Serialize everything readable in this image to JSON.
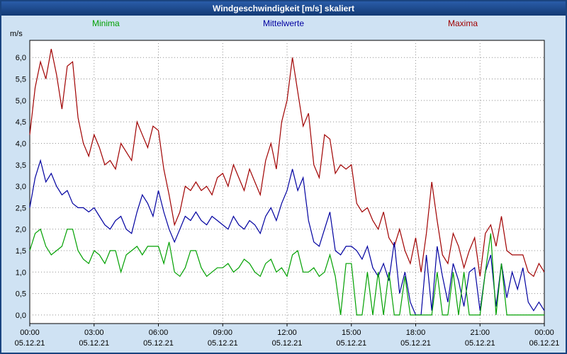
{
  "title": "Windgeschwindigkeit [m/s] skaliert",
  "legend": [
    {
      "label": "Minima",
      "color": "#00a000"
    },
    {
      "label": "Mittelwerte",
      "color": "#0000a0"
    },
    {
      "label": "Maxima",
      "color": "#a00000"
    }
  ],
  "chart_data": {
    "type": "line",
    "title": "Windgeschwindigkeit [m/s] skaliert",
    "xlabel": "",
    "ylabel": "m/s",
    "xlim": [
      0,
      24
    ],
    "ylim": [
      -0.2,
      6.4
    ],
    "y_tick_step": 0.5,
    "y_tick_max": 6.0,
    "x_tick_step_hours": 3,
    "x_step_hours": 0.25,
    "grid": "dotted",
    "legend_position": "top",
    "x_ticks": [
      {
        "time": "00:00",
        "date": "05.12.21"
      },
      {
        "time": "03:00",
        "date": "05.12.21"
      },
      {
        "time": "06:00",
        "date": "05.12.21"
      },
      {
        "time": "09:00",
        "date": "05.12.21"
      },
      {
        "time": "12:00",
        "date": "05.12.21"
      },
      {
        "time": "15:00",
        "date": "05.12.21"
      },
      {
        "time": "18:00",
        "date": "05.12.21"
      },
      {
        "time": "21:00",
        "date": "05.12.21"
      },
      {
        "time": "00:00",
        "date": "06.12.21"
      }
    ],
    "series": [
      {
        "name": "Maxima",
        "color": "#a00000",
        "values": [
          4.2,
          5.3,
          5.9,
          5.5,
          6.2,
          5.6,
          4.8,
          5.8,
          5.9,
          4.6,
          4.0,
          3.7,
          4.2,
          3.9,
          3.5,
          3.6,
          3.4,
          4.0,
          3.8,
          3.6,
          4.5,
          4.2,
          3.9,
          4.4,
          4.3,
          3.4,
          2.8,
          2.1,
          2.4,
          3.0,
          2.9,
          3.1,
          2.9,
          3.0,
          2.8,
          3.2,
          3.3,
          3.0,
          3.5,
          3.2,
          2.9,
          3.4,
          3.1,
          2.8,
          3.6,
          4.0,
          3.4,
          4.5,
          5.0,
          6.0,
          5.2,
          4.4,
          4.7,
          3.5,
          3.2,
          4.2,
          4.1,
          3.3,
          3.5,
          3.4,
          3.5,
          2.6,
          2.4,
          2.5,
          2.2,
          2.0,
          2.4,
          1.8,
          1.6,
          2.0,
          1.5,
          1.2,
          1.8,
          1.0,
          1.9,
          3.1,
          2.2,
          1.4,
          1.2,
          1.9,
          1.6,
          1.1,
          1.5,
          1.8,
          0.9,
          1.9,
          2.1,
          1.6,
          2.3,
          1.5,
          1.4,
          1.4,
          1.4,
          1.0,
          0.9,
          1.2,
          1.0
        ]
      },
      {
        "name": "Mittelwerte",
        "color": "#0000a0",
        "values": [
          2.5,
          3.2,
          3.6,
          3.1,
          3.3,
          3.0,
          2.8,
          2.9,
          2.6,
          2.5,
          2.5,
          2.4,
          2.5,
          2.3,
          2.1,
          2.0,
          2.2,
          2.3,
          2.0,
          1.9,
          2.4,
          2.8,
          2.6,
          2.3,
          2.9,
          2.4,
          2.0,
          1.7,
          2.0,
          2.3,
          2.2,
          2.4,
          2.2,
          2.1,
          2.3,
          2.2,
          2.1,
          2.0,
          2.3,
          2.1,
          2.0,
          2.2,
          2.1,
          1.9,
          2.3,
          2.5,
          2.2,
          2.6,
          2.9,
          3.4,
          2.9,
          3.2,
          2.2,
          1.7,
          1.6,
          2.0,
          2.4,
          1.5,
          1.4,
          1.6,
          1.6,
          1.5,
          1.3,
          1.6,
          1.1,
          0.9,
          1.2,
          0.8,
          1.7,
          0.5,
          1.0,
          0.3,
          0.0,
          0.0,
          1.4,
          0.1,
          1.6,
          0.9,
          0.3,
          1.2,
          0.8,
          0.2,
          1.0,
          1.1,
          0.1,
          1.0,
          1.4,
          0.2,
          1.2,
          0.4,
          1.0,
          0.6,
          1.1,
          0.3,
          0.1,
          0.3,
          0.1
        ]
      },
      {
        "name": "Minima",
        "color": "#00a000",
        "values": [
          1.5,
          1.9,
          2.0,
          1.6,
          1.4,
          1.5,
          1.6,
          2.0,
          2.0,
          1.5,
          1.3,
          1.2,
          1.5,
          1.4,
          1.2,
          1.5,
          1.5,
          1.0,
          1.4,
          1.5,
          1.6,
          1.4,
          1.6,
          1.6,
          1.6,
          1.2,
          1.7,
          1.0,
          0.9,
          1.1,
          1.5,
          1.5,
          1.1,
          0.9,
          1.0,
          1.1,
          1.1,
          1.2,
          1.0,
          1.1,
          1.3,
          1.2,
          1.0,
          0.9,
          1.2,
          1.3,
          1.0,
          1.1,
          0.9,
          1.4,
          1.5,
          1.0,
          1.0,
          1.1,
          0.9,
          1.0,
          1.4,
          0.9,
          0.0,
          1.2,
          1.2,
          0.0,
          0.0,
          1.0,
          0.0,
          1.0,
          0.0,
          1.0,
          0.0,
          0.0,
          0.9,
          0.0,
          0.0,
          0.0,
          0.0,
          0.0,
          1.0,
          0.0,
          0.0,
          1.0,
          0.0,
          1.0,
          0.0,
          0.0,
          0.0,
          1.0,
          1.9,
          0.0,
          1.2,
          0.0,
          0.0,
          0.0,
          0.0,
          0.0,
          0.0,
          0.0,
          0.0
        ]
      }
    ]
  }
}
